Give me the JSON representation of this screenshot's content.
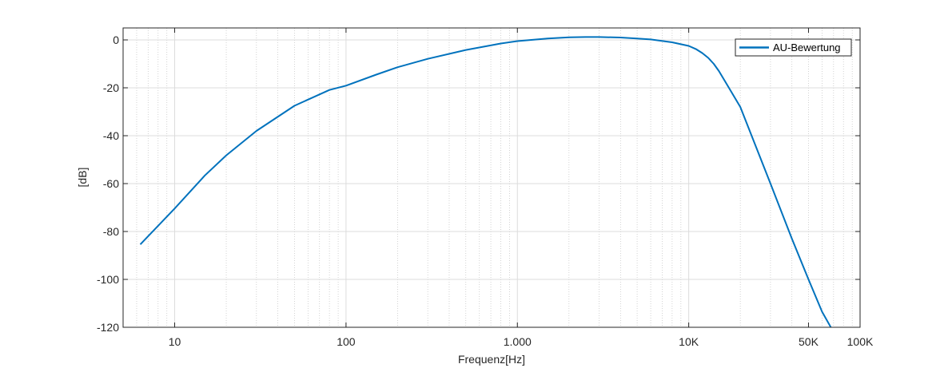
{
  "chart_data": {
    "type": "line",
    "xlabel": "Frequenz[Hz]",
    "ylabel": "[dB]",
    "xscale": "log",
    "xlim": [
      5,
      100000
    ],
    "ylim": [
      -120,
      5
    ],
    "grid": true,
    "minor_grid": true,
    "legend_position": "top-right",
    "x_ticks": [
      {
        "value": 10,
        "label": "10"
      },
      {
        "value": 100,
        "label": "100"
      },
      {
        "value": 1000,
        "label": "1.000"
      },
      {
        "value": 10000,
        "label": "10K"
      },
      {
        "value": 50000,
        "label": "50K"
      },
      {
        "value": 100000,
        "label": "100K"
      }
    ],
    "y_ticks": [
      {
        "value": 0,
        "label": "0"
      },
      {
        "value": -20,
        "label": "-20"
      },
      {
        "value": -40,
        "label": "-40"
      },
      {
        "value": -60,
        "label": "-60"
      },
      {
        "value": -80,
        "label": "-80"
      },
      {
        "value": -100,
        "label": "-100"
      },
      {
        "value": -120,
        "label": "-120"
      }
    ],
    "series": [
      {
        "name": "AU-Bewertung",
        "color": "#0072BD",
        "x": [
          6.3,
          10,
          15,
          20,
          30,
          50,
          80,
          100,
          150,
          200,
          300,
          500,
          800,
          1000,
          1500,
          2000,
          2500,
          3000,
          4000,
          5000,
          6000,
          8000,
          10000,
          11000,
          12000,
          13000,
          14000,
          15000,
          17000,
          20000,
          30000,
          40000,
          50000,
          60000,
          70000
        ],
        "y": [
          -85.4,
          -70.4,
          -56.6,
          -48.2,
          -38.0,
          -27.5,
          -20.9,
          -19.1,
          -14.5,
          -11.4,
          -7.9,
          -4.2,
          -1.5,
          -0.5,
          0.6,
          1.1,
          1.2,
          1.2,
          1.0,
          0.6,
          0.2,
          -1.0,
          -2.5,
          -3.8,
          -5.5,
          -7.5,
          -10.0,
          -13.0,
          -19.5,
          -28.0,
          -60.0,
          -83.0,
          -100.0,
          -113.5,
          -122.0
        ]
      }
    ]
  }
}
